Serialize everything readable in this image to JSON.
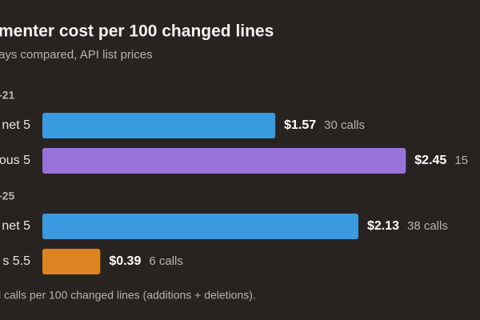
{
  "chart_data": {
    "type": "bar",
    "title": "menter cost per 100 changed lines",
    "subtitle": "ays compared, API list prices",
    "footnote": "l calls per 100 changed lines (additions + deletions).",
    "xlim": [
      0,
      2.95
    ],
    "groups": [
      {
        "label": "-21",
        "items": [
          {
            "name": "net 5",
            "color": "#3b9be0",
            "value": 1.57,
            "value_label": "$1.57",
            "note": "30 calls"
          },
          {
            "name": "ous 5",
            "color": "#9a72db",
            "value": 2.45,
            "value_label": "$2.45",
            "note": "15"
          }
        ]
      },
      {
        "label": "-25",
        "items": [
          {
            "name": "net 5",
            "color": "#3b9be0",
            "value": 2.13,
            "value_label": "$2.13",
            "note": "38 calls"
          },
          {
            "name": "s 5.5",
            "color": "#db8421",
            "value": 0.39,
            "value_label": "$0.39",
            "note": "6 calls"
          }
        ]
      }
    ]
  }
}
